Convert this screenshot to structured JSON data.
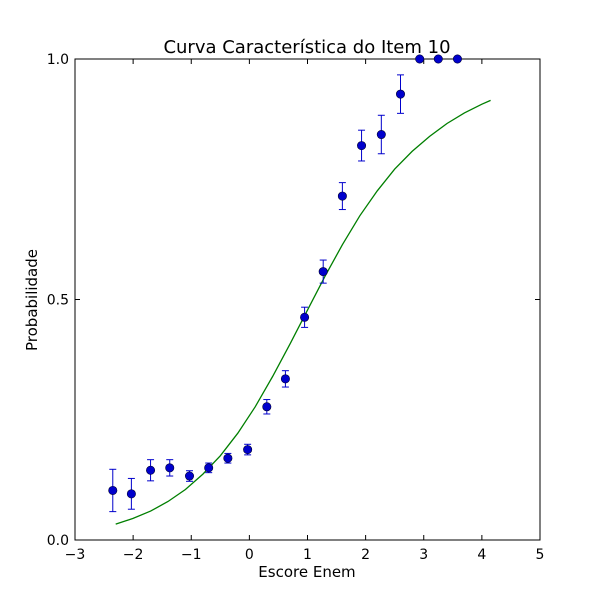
{
  "chart_data": {
    "type": "scatter",
    "title": "Curva Característica do Item 10",
    "xlabel": "Escore Enem",
    "ylabel": "Probabilidade",
    "xlim": [
      -3,
      5
    ],
    "ylim": [
      0.0,
      1.0
    ],
    "xticks": [
      -3,
      -2,
      -1,
      0,
      1,
      2,
      3,
      4,
      5
    ],
    "xtick_labels": [
      "−3",
      "−2",
      "−1",
      "0",
      "1",
      "2",
      "3",
      "4",
      "5"
    ],
    "yticks": [
      0.0,
      0.5,
      1.0
    ],
    "ytick_labels": [
      "0.0",
      "0.5",
      "1.0"
    ],
    "grid": false,
    "series": [
      {
        "type": "errorbar",
        "color": "#0000cc",
        "points": [
          {
            "x": -2.35,
            "y": 0.103,
            "err": 0.044
          },
          {
            "x": -2.03,
            "y": 0.096,
            "err": 0.032
          },
          {
            "x": -1.7,
            "y": 0.145,
            "err": 0.022
          },
          {
            "x": -1.37,
            "y": 0.15,
            "err": 0.017
          },
          {
            "x": -1.03,
            "y": 0.133,
            "err": 0.011
          },
          {
            "x": -0.7,
            "y": 0.15,
            "err": 0.01
          },
          {
            "x": -0.37,
            "y": 0.17,
            "err": 0.01
          },
          {
            "x": -0.03,
            "y": 0.188,
            "err": 0.011
          },
          {
            "x": 0.3,
            "y": 0.277,
            "err": 0.015
          },
          {
            "x": 0.62,
            "y": 0.335,
            "err": 0.017
          },
          {
            "x": 0.95,
            "y": 0.463,
            "err": 0.021
          },
          {
            "x": 1.27,
            "y": 0.558,
            "err": 0.024
          },
          {
            "x": 1.6,
            "y": 0.715,
            "err": 0.028
          },
          {
            "x": 1.93,
            "y": 0.82,
            "err": 0.032
          },
          {
            "x": 2.27,
            "y": 0.843,
            "err": 0.04
          },
          {
            "x": 2.6,
            "y": 0.927,
            "err": 0.04
          },
          {
            "x": 2.93,
            "y": 1.0,
            "err": 0.0
          },
          {
            "x": 3.25,
            "y": 1.0,
            "err": 0.0
          },
          {
            "x": 3.58,
            "y": 1.0,
            "err": 0.0
          }
        ]
      },
      {
        "type": "line",
        "color": "#007f00",
        "x": [
          -2.3,
          -2.0,
          -1.7,
          -1.4,
          -1.1,
          -0.8,
          -0.5,
          -0.2,
          0.1,
          0.4,
          0.7,
          1.0,
          1.3,
          1.6,
          1.9,
          2.2,
          2.5,
          2.8,
          3.1,
          3.4,
          3.7,
          4.0,
          4.15
        ],
        "y": [
          0.033,
          0.045,
          0.06,
          0.08,
          0.105,
          0.137,
          0.175,
          0.222,
          0.277,
          0.34,
          0.408,
          0.478,
          0.548,
          0.614,
          0.674,
          0.726,
          0.771,
          0.808,
          0.839,
          0.866,
          0.888,
          0.906,
          0.914
        ]
      }
    ]
  }
}
